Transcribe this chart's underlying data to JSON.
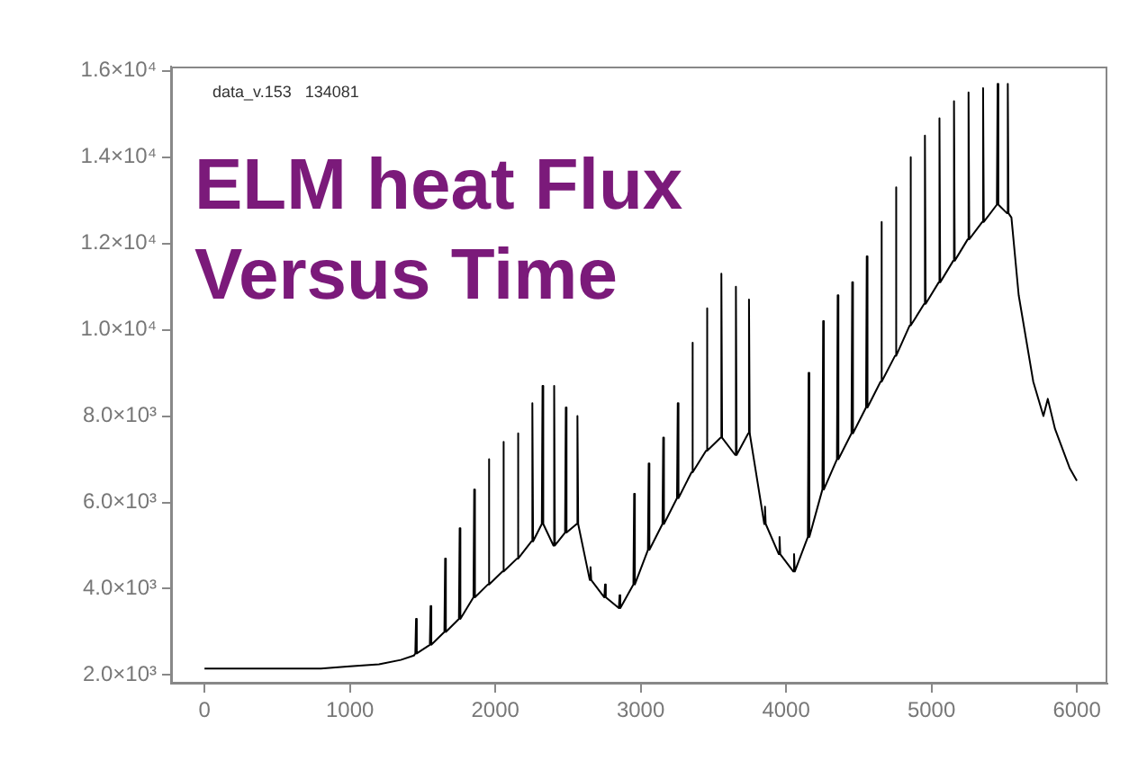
{
  "chart_data": {
    "type": "line",
    "title": "ELM heat Flux Versus Time",
    "annotations": [
      "data_v.153   134081"
    ],
    "x": [
      0,
      800,
      1000,
      1200,
      1350,
      1440,
      1450,
      1455,
      1460,
      1550,
      1555,
      1560,
      1650,
      1655,
      1660,
      1750,
      1755,
      1760,
      1850,
      1855,
      1860,
      1950,
      1955,
      1960,
      2050,
      2055,
      2060,
      2150,
      2155,
      2160,
      2250,
      2255,
      2260,
      2320,
      2325,
      2330,
      2400,
      2405,
      2410,
      2480,
      2485,
      2490,
      2560,
      2565,
      2570,
      2650,
      2655,
      2660,
      2750,
      2755,
      2760,
      2850,
      2855,
      2860,
      2950,
      2955,
      2960,
      3050,
      3055,
      3060,
      3150,
      3155,
      3160,
      3250,
      3255,
      3260,
      3350,
      3355,
      3360,
      3450,
      3455,
      3460,
      3550,
      3555,
      3560,
      3650,
      3655,
      3660,
      3740,
      3745,
      3750,
      3850,
      3855,
      3860,
      3950,
      3955,
      3960,
      4050,
      4055,
      4060,
      4150,
      4155,
      4160,
      4250,
      4255,
      4260,
      4350,
      4355,
      4360,
      4450,
      4455,
      4460,
      4550,
      4555,
      4560,
      4650,
      4655,
      4660,
      4750,
      4755,
      4760,
      4850,
      4855,
      4860,
      4950,
      4955,
      4960,
      5050,
      5055,
      5060,
      5150,
      5155,
      5160,
      5250,
      5255,
      5260,
      5350,
      5355,
      5360,
      5450,
      5455,
      5460,
      5520,
      5525,
      5530,
      5550,
      5600,
      5700,
      5770,
      5800,
      5850,
      5950,
      6000
    ],
    "series": [
      {
        "color": "#000000",
        "values": [
          2150,
          2150,
          2200,
          2250,
          2350,
          2450,
          2500,
          3300,
          2500,
          2700,
          3600,
          2700,
          3000,
          4700,
          3000,
          3300,
          5400,
          3300,
          3800,
          6300,
          3800,
          4100,
          7000,
          4100,
          4400,
          7400,
          4400,
          4700,
          7600,
          4700,
          5100,
          8300,
          5100,
          5500,
          8700,
          5500,
          5000,
          8700,
          5000,
          5300,
          8200,
          5300,
          5500,
          8000,
          5500,
          4200,
          4500,
          4200,
          3800,
          4100,
          3800,
          3550,
          3850,
          3550,
          4100,
          6200,
          4100,
          4900,
          6900,
          4900,
          5500,
          7500,
          5500,
          6100,
          8300,
          6100,
          6700,
          9700,
          6700,
          7200,
          10500,
          7200,
          7500,
          11300,
          7500,
          7100,
          11000,
          7100,
          7600,
          10700,
          7600,
          5500,
          5900,
          5500,
          4800,
          5200,
          4800,
          4400,
          4800,
          4400,
          5200,
          9000,
          5200,
          6300,
          10200,
          6300,
          7000,
          10800,
          7000,
          7600,
          11100,
          7600,
          8200,
          11700,
          8200,
          8800,
          12500,
          8800,
          9400,
          13300,
          9400,
          10100,
          14000,
          10100,
          10600,
          14500,
          10600,
          11100,
          14900,
          11100,
          11600,
          15300,
          11600,
          12100,
          15500,
          12100,
          12500,
          15600,
          12500,
          12900,
          15700,
          12900,
          12700,
          15700,
          12700,
          12600,
          10800,
          8800,
          8000,
          8400,
          7700,
          6800,
          6500
        ]
      }
    ],
    "xlim": [
      -230,
      6210
    ],
    "ylim": [
      1800,
      16100
    ],
    "xticks": [
      0,
      1000,
      2000,
      3000,
      4000,
      5000,
      6000
    ],
    "yticks": [
      {
        "value": 2000,
        "label": "2.0×10³"
      },
      {
        "value": 4000,
        "label": "4.0×10³"
      },
      {
        "value": 6000,
        "label": "6.0×10³"
      },
      {
        "value": 8000,
        "label": "8.0×10³"
      },
      {
        "value": 10000,
        "label": "1.0×10⁴"
      },
      {
        "value": 12000,
        "label": "1.2×10⁴"
      },
      {
        "value": 14000,
        "label": "1.4×10⁴"
      },
      {
        "value": 16000,
        "label": "1.6×10⁴"
      }
    ],
    "grid": false,
    "legend": false,
    "marker": "none",
    "line_style": "solid"
  }
}
